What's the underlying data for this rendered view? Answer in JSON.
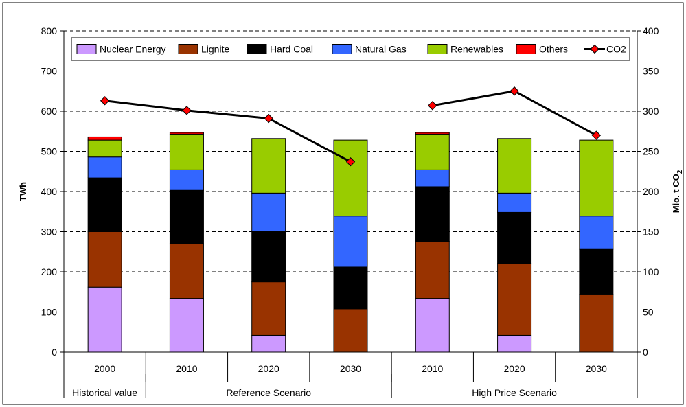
{
  "chart_data": {
    "type": "bar",
    "stacked": true,
    "grid": "horizontal dashed",
    "legend_placement": "top inside",
    "x": {
      "categories": [
        "2000",
        "2010",
        "2020",
        "2030",
        "2010",
        "2020",
        "2030"
      ],
      "groups": [
        {
          "label": "Historical value",
          "span": 1
        },
        {
          "label": "Reference Scenario",
          "span": 3
        },
        {
          "label": "High Price Scenario",
          "span": 3
        }
      ]
    },
    "y_left": {
      "label": "TWh",
      "min": 0,
      "max": 800,
      "step": 100,
      "ticks": [
        "0",
        "100",
        "200",
        "300",
        "400",
        "500",
        "600",
        "700",
        "800"
      ]
    },
    "y_right": {
      "label": "Mio. t CO",
      "label_sub": "2",
      "min": 0,
      "max": 400,
      "step": 50,
      "ticks": [
        "0",
        "50",
        "100",
        "150",
        "200",
        "250",
        "300",
        "350",
        "400"
      ]
    },
    "series": [
      {
        "name": "Nuclear Energy",
        "color": "#cc99ff",
        "values": [
          162,
          134,
          42,
          0,
          134,
          42,
          0
        ]
      },
      {
        "name": "Lignite",
        "color": "#993300",
        "values": [
          138,
          136,
          133,
          108,
          142,
          179,
          143
        ]
      },
      {
        "name": "Hard Coal",
        "color": "#000000",
        "values": [
          134,
          133,
          126,
          104,
          136,
          127,
          113
        ]
      },
      {
        "name": "Natural Gas",
        "color": "#3366ff",
        "values": [
          52,
          51,
          95,
          127,
          42,
          48,
          83
        ]
      },
      {
        "name": "Renewables",
        "color": "#99cc00",
        "values": [
          42,
          89,
          135,
          189,
          89,
          135,
          189
        ]
      },
      {
        "name": "Others",
        "color": "#ff0000",
        "values": [
          8,
          4,
          1,
          0,
          4,
          1,
          0
        ]
      }
    ],
    "line": {
      "name": "CO2",
      "axis": "right",
      "color": "#000000",
      "marker_color": "#ff0000",
      "segments": [
        [
          1,
          3
        ],
        [
          4,
          6
        ]
      ],
      "values": [
        313,
        301,
        291,
        237,
        307,
        325,
        270
      ]
    }
  }
}
